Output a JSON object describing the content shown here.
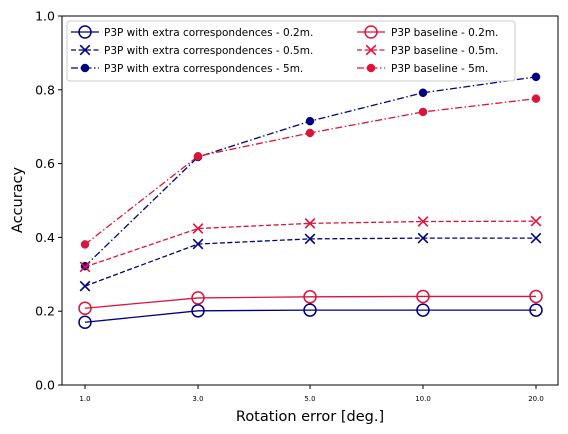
{
  "chart_data": {
    "type": "line",
    "xlabel": "Rotation error [deg.]",
    "ylabel": "Accuracy",
    "categories": [
      "1.0",
      "3.0",
      "5.0",
      "10.0",
      "20.0"
    ],
    "ylim": [
      0.0,
      1.0
    ],
    "yticks": [
      "0.0",
      "0.2",
      "0.4",
      "0.6",
      "0.8",
      "1.0"
    ],
    "grid": false,
    "legend_placement": "top-left",
    "legend_columns": 2,
    "series": [
      {
        "name": "P3P with extra correspondences - 0.2m.",
        "values": [
          0.17,
          0.201,
          0.203,
          0.203,
          0.203
        ],
        "color": "#000080",
        "dash": "solid",
        "marker": "open-circle"
      },
      {
        "name": "P3P with extra correspondences - 0.5m.",
        "values": [
          0.268,
          0.382,
          0.396,
          0.398,
          0.398
        ],
        "color": "#000080",
        "dash": "dashed",
        "marker": "x"
      },
      {
        "name": "P3P with extra correspondences - 5m.",
        "values": [
          0.322,
          0.618,
          0.715,
          0.792,
          0.835
        ],
        "color": "#000080",
        "dash": "dashdot",
        "marker": "dot"
      },
      {
        "name": "P3P baseline - 0.2m.",
        "values": [
          0.208,
          0.236,
          0.239,
          0.24,
          0.24
        ],
        "color": "#dc143c",
        "dash": "solid",
        "marker": "open-circle"
      },
      {
        "name": "P3P baseline - 0.5m.",
        "values": [
          0.32,
          0.424,
          0.438,
          0.443,
          0.444
        ],
        "color": "#dc143c",
        "dash": "dashed",
        "marker": "x"
      },
      {
        "name": "P3P baseline - 5m.",
        "values": [
          0.381,
          0.62,
          0.683,
          0.74,
          0.776
        ],
        "color": "#dc143c",
        "dash": "dashdot",
        "marker": "dot"
      }
    ]
  }
}
